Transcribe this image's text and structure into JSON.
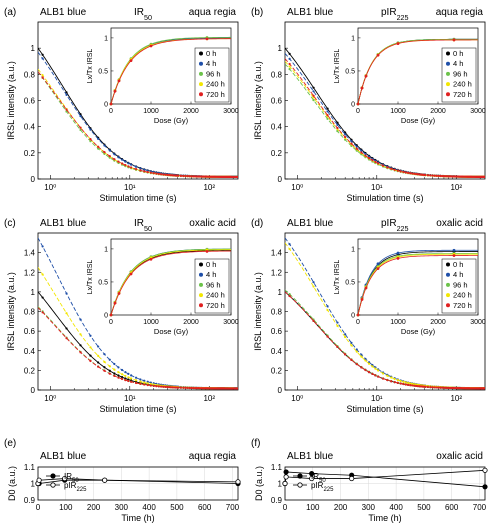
{
  "colors": {
    "0 h": "#000000",
    "4 h": "#1f4fa8",
    "96 h": "#6cc24a",
    "240 h": "#f2e600",
    "720 h": "#e02020",
    "axis": "#000000",
    "grid": "#d9d9d9"
  },
  "chart_data": [
    {
      "id": "a",
      "panel_label": "(a)",
      "type": "scatter",
      "sample": "ALB1 blue",
      "signal_main": "IR",
      "signal_sub": "50",
      "signal_post": "",
      "treatment": "aqua regia",
      "xlabel": "Stimulation time (s)",
      "ylabel": "IRSL intensity (a.u.)",
      "xscale": "log",
      "xlim": [
        0.7,
        230
      ],
      "ylim": [
        0,
        1.2
      ],
      "yticks": [
        "0",
        "0.2",
        "0.4",
        "0.6",
        "0.8",
        "1"
      ],
      "xticks": [
        "10⁰",
        "10¹",
        "10²"
      ],
      "series": [
        {
          "name": "0 h",
          "I0": 1.0,
          "tau": 3.0
        },
        {
          "name": "4 h",
          "I0": 0.97,
          "tau": 3.0
        },
        {
          "name": "96 h",
          "I0": 0.82,
          "tau": 2.6
        },
        {
          "name": "240 h",
          "I0": 0.84,
          "tau": 2.7
        },
        {
          "name": "720 h",
          "I0": 0.82,
          "tau": 2.8
        }
      ],
      "inset": {
        "xlabel": "Dose (Gy)",
        "ylabel": "Lx/Tx IRSL",
        "xlim": [
          0,
          3000
        ],
        "ylim": [
          0,
          1.15
        ],
        "xticks": [
          "0",
          "1000",
          "2000",
          "3000"
        ],
        "yticks": [
          "0",
          "0.5",
          "1"
        ],
        "doses": [
          0,
          100,
          200,
          500,
          1000,
          2400
        ],
        "curves": [
          {
            "name": "0 h",
            "Imax": 1.0,
            "D0": 450
          },
          {
            "name": "4 h",
            "Imax": 1.0,
            "D0": 450
          },
          {
            "name": "96 h",
            "Imax": 1.01,
            "D0": 440
          },
          {
            "name": "240 h",
            "Imax": 0.99,
            "D0": 440
          },
          {
            "name": "720 h",
            "Imax": 0.99,
            "D0": 460
          }
        ]
      }
    },
    {
      "id": "b",
      "panel_label": "(b)",
      "type": "scatter",
      "sample": "ALB1 blue",
      "signal_main": "pIR",
      "signal_sub": "225",
      "signal_post": "",
      "treatment": "aqua regia",
      "xlabel": "Stimulation time (s)",
      "ylabel": "IRSL intensity (a.u.)",
      "xscale": "log",
      "xlim": [
        0.7,
        230
      ],
      "ylim": [
        0,
        1.2
      ],
      "yticks": [
        "0",
        "0.2",
        "0.4",
        "0.6",
        "0.8",
        "1"
      ],
      "xticks": [
        "10⁰",
        "10¹",
        "10²"
      ],
      "series": [
        {
          "name": "0 h",
          "I0": 1.0,
          "tau": 3.5
        },
        {
          "name": "4 h",
          "I0": 0.96,
          "tau": 3.5
        },
        {
          "name": "96 h",
          "I0": 0.88,
          "tau": 3.3
        },
        {
          "name": "240 h",
          "I0": 0.9,
          "tau": 3.4
        },
        {
          "name": "720 h",
          "I0": 0.92,
          "tau": 3.4
        }
      ],
      "inset": {
        "xlabel": "Dose (Gy)",
        "ylabel": "Lx/Tx IRSL",
        "xlim": [
          0,
          3000
        ],
        "ylim": [
          0,
          1.15
        ],
        "xticks": [
          "0",
          "1000",
          "2000",
          "3000"
        ],
        "yticks": [
          "0",
          "0.5",
          "1"
        ],
        "doses": [
          0,
          100,
          200,
          500,
          1000,
          2400
        ],
        "curves": [
          {
            "name": "0 h",
            "Imax": 0.98,
            "D0": 350
          },
          {
            "name": "4 h",
            "Imax": 0.98,
            "D0": 350
          },
          {
            "name": "96 h",
            "Imax": 0.98,
            "D0": 345
          },
          {
            "name": "240 h",
            "Imax": 0.97,
            "D0": 345
          },
          {
            "name": "720 h",
            "Imax": 0.97,
            "D0": 350
          }
        ]
      }
    },
    {
      "id": "c",
      "panel_label": "(c)",
      "type": "scatter",
      "sample": "ALB1 blue",
      "signal_main": "IR",
      "signal_sub": "50",
      "signal_post": "",
      "treatment": "oxalic acid",
      "xlabel": "Stimulation time (s)",
      "ylabel": "IRSL intensity (a.u.)",
      "xscale": "log",
      "xlim": [
        0.7,
        230
      ],
      "ylim": [
        0,
        1.6
      ],
      "yticks": [
        "0",
        "0.2",
        "0.4",
        "0.6",
        "0.8",
        "1",
        "1.2",
        "1.4"
      ],
      "xticks": [
        "10⁰",
        "10¹",
        "10²"
      ],
      "series": [
        {
          "name": "0 h",
          "I0": 1.0,
          "tau": 2.6
        },
        {
          "name": "4 h",
          "I0": 1.55,
          "tau": 2.7
        },
        {
          "name": "96 h",
          "I0": 0.85,
          "tau": 2.6
        },
        {
          "name": "240 h",
          "I0": 1.25,
          "tau": 2.6
        },
        {
          "name": "720 h",
          "I0": 0.84,
          "tau": 2.6
        }
      ],
      "inset": {
        "xlabel": "Dose (Gy)",
        "ylabel": "Lx/Tx IRSL",
        "xlim": [
          0,
          3000
        ],
        "ylim": [
          0,
          1.15
        ],
        "xticks": [
          "0",
          "1000",
          "2000",
          "3000"
        ],
        "yticks": [
          "0",
          "0.5",
          "1"
        ],
        "doses": [
          0,
          100,
          200,
          500,
          1000,
          2400
        ],
        "curves": [
          {
            "name": "0 h",
            "Imax": 0.98,
            "D0": 480
          },
          {
            "name": "4 h",
            "Imax": 1.0,
            "D0": 470
          },
          {
            "name": "96 h",
            "Imax": 1.0,
            "D0": 470
          },
          {
            "name": "240 h",
            "Imax": 0.99,
            "D0": 480
          },
          {
            "name": "720 h",
            "Imax": 0.97,
            "D0": 490
          }
        ]
      }
    },
    {
      "id": "d",
      "panel_label": "(d)",
      "type": "scatter",
      "sample": "ALB1 blue",
      "signal_main": "pIR",
      "signal_sub": "225",
      "signal_post": "",
      "treatment": "oxalic acid",
      "xlabel": "Stimulation time (s)",
      "ylabel": "IRSL intensity (a.u.)",
      "xscale": "log",
      "xlim": [
        0.7,
        230
      ],
      "ylim": [
        0,
        1.6
      ],
      "yticks": [
        "0",
        "0.2",
        "0.4",
        "0.6",
        "0.8",
        "1",
        "1.2",
        "1.4"
      ],
      "xticks": [
        "10⁰",
        "10¹",
        "10²"
      ],
      "series": [
        {
          "name": "0 h",
          "I0": 1.0,
          "tau": 3.6
        },
        {
          "name": "4 h",
          "I0": 1.55,
          "tau": 3.7
        },
        {
          "name": "96 h",
          "I0": 1.02,
          "tau": 3.6
        },
        {
          "name": "240 h",
          "I0": 1.5,
          "tau": 3.6
        },
        {
          "name": "720 h",
          "I0": 1.0,
          "tau": 3.6
        }
      ],
      "inset": {
        "xlabel": "Dose (Gy)",
        "ylabel": "Lx/Tx IRSL",
        "xlim": [
          0,
          3000
        ],
        "ylim": [
          0,
          1.15
        ],
        "xticks": [
          "0",
          "1000",
          "2000",
          "3000"
        ],
        "yticks": [
          "0",
          "0.5",
          "1"
        ],
        "doses": [
          0,
          100,
          200,
          500,
          1000,
          2400
        ],
        "curves": [
          {
            "name": "0 h",
            "Imax": 0.96,
            "D0": 330
          },
          {
            "name": "4 h",
            "Imax": 0.98,
            "D0": 320
          },
          {
            "name": "96 h",
            "Imax": 0.93,
            "D0": 320
          },
          {
            "name": "240 h",
            "Imax": 0.92,
            "D0": 330
          },
          {
            "name": "720 h",
            "Imax": 0.9,
            "D0": 330
          }
        ]
      }
    },
    {
      "id": "e",
      "panel_label": "(e)",
      "type": "line",
      "sample": "ALB1 blue",
      "treatment": "aqua regia",
      "xlabel": "Time (h)",
      "ylabel": "D0 (a.u.)",
      "xlim": [
        0,
        720
      ],
      "ylim": [
        0.9,
        1.1
      ],
      "xticks": [
        "0",
        "100",
        "200",
        "300",
        "400",
        "500",
        "600",
        "700"
      ],
      "yticks": [
        "0.9",
        "1",
        "1.1"
      ],
      "x": [
        0,
        4,
        96,
        240,
        720
      ],
      "series": [
        {
          "name": "IR50",
          "label_main": "IR",
          "label_sub": "50",
          "marker": "filled",
          "values": [
            1.0,
            1.0,
            1.02,
            1.02,
            1.0
          ]
        },
        {
          "name": "pIR225",
          "label_main": "pIR",
          "label_sub": "225",
          "marker": "open",
          "values": [
            1.0,
            1.02,
            1.03,
            1.02,
            1.01
          ]
        }
      ]
    },
    {
      "id": "f",
      "panel_label": "(f)",
      "type": "line",
      "sample": "ALB1 blue",
      "treatment": "oxalic acid",
      "xlabel": "Time (h)",
      "ylabel": "D0 (a.u.)",
      "xlim": [
        0,
        720
      ],
      "ylim": [
        0.9,
        1.1
      ],
      "xticks": [
        "0",
        "100",
        "200",
        "300",
        "400",
        "500",
        "600",
        "700"
      ],
      "yticks": [
        "0.9",
        "1",
        "1.1"
      ],
      "x": [
        0,
        4,
        96,
        240,
        720
      ],
      "series": [
        {
          "name": "IR50",
          "label_main": "IR",
          "label_sub": "50",
          "marker": "filled",
          "values": [
            1.0,
            1.07,
            1.06,
            1.05,
            0.98
          ]
        },
        {
          "name": "pIR225",
          "label_main": "pIR",
          "label_sub": "225",
          "marker": "open",
          "values": [
            1.0,
            1.04,
            1.03,
            1.03,
            1.08
          ]
        }
      ]
    }
  ]
}
